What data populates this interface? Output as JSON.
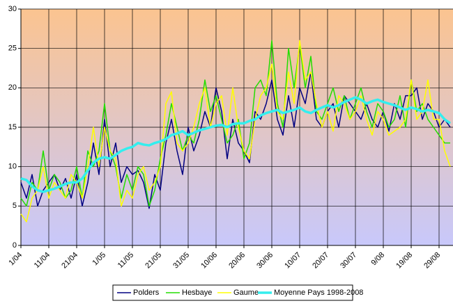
{
  "chart_data": {
    "type": "line",
    "categories": [
      "1/04",
      null,
      null,
      null,
      null,
      "11/04",
      null,
      null,
      null,
      null,
      "21/04",
      null,
      null,
      null,
      null,
      "1/05",
      null,
      null,
      null,
      null,
      "11/05",
      null,
      null,
      null,
      null,
      "21/05",
      null,
      null,
      null,
      null,
      "31/05",
      null,
      null,
      null,
      null,
      "10/06",
      null,
      null,
      null,
      null,
      "20/06",
      null,
      null,
      null,
      null,
      "30/06",
      null,
      null,
      null,
      null,
      "10/07",
      null,
      null,
      null,
      null,
      "20/07",
      null,
      null,
      null,
      null,
      "30/07",
      null,
      null,
      null,
      null,
      "9/08",
      null,
      null,
      null,
      null,
      "19/08",
      null,
      null,
      null,
      null,
      "29/08",
      null,
      null
    ],
    "series": [
      {
        "name": "Polders",
        "color": "#000080",
        "width": 1.5,
        "values": [
          8,
          6,
          9,
          5,
          7,
          8,
          9,
          7,
          8.5,
          6,
          9,
          5,
          8,
          13,
          9,
          16,
          10,
          13,
          8,
          10,
          9,
          9.5,
          8,
          4.7,
          9,
          7,
          13,
          16,
          12,
          9,
          15,
          12,
          14,
          17,
          15,
          20,
          17,
          11,
          16,
          13,
          12,
          10.5,
          17,
          16,
          18,
          21,
          16,
          14,
          19,
          15,
          20,
          18,
          22,
          16,
          15,
          17,
          18,
          15,
          19,
          18,
          17,
          16,
          18,
          16,
          15,
          17,
          14.5,
          18,
          16,
          19,
          19,
          20,
          16,
          18,
          17,
          15,
          16,
          15
        ]
      },
      {
        "name": "Hesbaye",
        "color": "#22dd00",
        "width": 1.5,
        "values": [
          6,
          5,
          8,
          7,
          12,
          7,
          9,
          8,
          6,
          7,
          10,
          6,
          12,
          10,
          12,
          18,
          12,
          10,
          6,
          9,
          7,
          10,
          9,
          5,
          7,
          11,
          14,
          18,
          15,
          12,
          14,
          13,
          16,
          21,
          17,
          19,
          16,
          13,
          14,
          16,
          11,
          13,
          20,
          21,
          19,
          26,
          18,
          15,
          25,
          20,
          25.5,
          20,
          24,
          17,
          16,
          18,
          20,
          17,
          19,
          16,
          18,
          20,
          17,
          15,
          18,
          17,
          15,
          16,
          19,
          15,
          21,
          17,
          18,
          16,
          15,
          14,
          13,
          13
        ]
      },
      {
        "name": "Gaume",
        "color": "#ffff00",
        "width": 1.5,
        "values": [
          4,
          3,
          6,
          7,
          10,
          6,
          8,
          7,
          6,
          9,
          8,
          6,
          10,
          15,
          10,
          15,
          12,
          11,
          5,
          7,
          6,
          9,
          10,
          7,
          8,
          10,
          18,
          19.5,
          13,
          12,
          13,
          15,
          18,
          20,
          15,
          18,
          19,
          14,
          20,
          15,
          12,
          11,
          16,
          19,
          20,
          23,
          17,
          16,
          22,
          18,
          26,
          21,
          22,
          18,
          15,
          17,
          14.5,
          19,
          18,
          16,
          17,
          19,
          16,
          14,
          17,
          16,
          14,
          14.5,
          15,
          16,
          21,
          16,
          17,
          21,
          16,
          16,
          12,
          10
        ]
      },
      {
        "name": "Moyenne Pays 1998-2008",
        "color": "#33eeee",
        "width": 3.5,
        "values": [
          8.5,
          8.3,
          7.5,
          7,
          6.8,
          7,
          7.2,
          7.5,
          7.8,
          8,
          8,
          8.5,
          9.5,
          10.5,
          11,
          11.2,
          11,
          11.5,
          12,
          12.3,
          12.5,
          13,
          12.8,
          12.7,
          13,
          13.2,
          13.5,
          14,
          14.2,
          14.5,
          14,
          14.3,
          14.6,
          14.8,
          15,
          15.2,
          15.3,
          15,
          15.4,
          15.5,
          15.5,
          15.8,
          16,
          16.5,
          16.8,
          17,
          17.2,
          16.8,
          17,
          17.2,
          17.5,
          17,
          16.8,
          17.2,
          17.5,
          17.8,
          17.5,
          17.8,
          18.2,
          18.5,
          18.8,
          18.5,
          18,
          18.3,
          18.5,
          18.2,
          18,
          17.8,
          17.5,
          17.2,
          17.5,
          17.3,
          17,
          17.2,
          17,
          16.8,
          16,
          15.5
        ]
      }
    ],
    "ylim": [
      0,
      30
    ],
    "yticks": [
      0,
      5,
      10,
      15,
      20,
      25,
      30
    ],
    "grid": true
  }
}
